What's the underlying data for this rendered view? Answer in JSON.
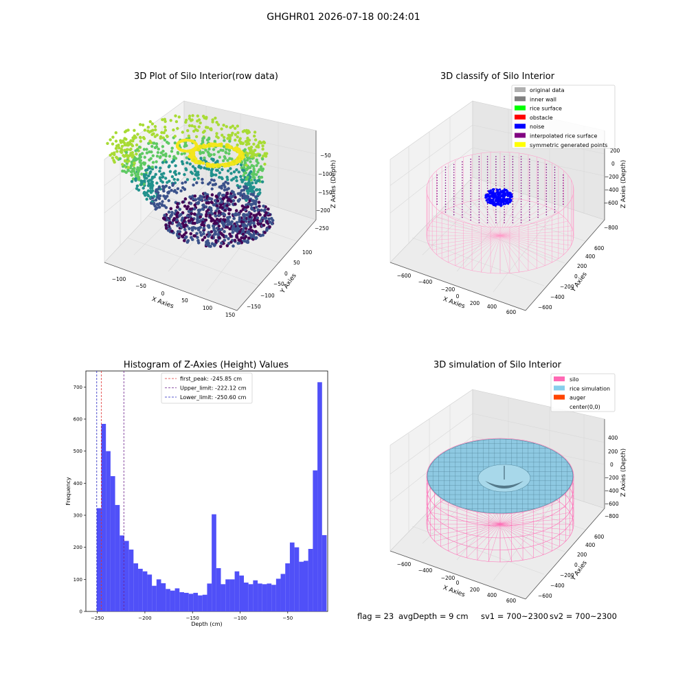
{
  "figure": {
    "title": "GHGHR01 2026-07-18 00:24:01"
  },
  "status": {
    "flag": "flag = 23",
    "avg_depth": "avgDepth = 9 cm",
    "sv1": "sv1 = 700~2300",
    "sv2": "sv2 = 700~2300"
  },
  "colors": {
    "histogram_bar": "#5050f8",
    "first_peak": "#e03030",
    "upper_limit": "#6a1d8a",
    "lower_limit": "#2020c0",
    "silo": "#ff69b4",
    "rice_simulation": "#87ceeb",
    "auger": "#ff4500",
    "noise": "#0000ff"
  },
  "chart_data": [
    {
      "type": "scatter",
      "title": "3D Plot of Silo Interior(row data)",
      "xlabel": "X Axies",
      "ylabel": "Y Axies",
      "zlabel": "Z Axies (Depth)",
      "x_ticks": [
        "−100",
        "−50",
        "0",
        "50",
        "100",
        "150"
      ],
      "y_ticks": [
        "−150",
        "−100",
        "−50",
        "0",
        "50",
        "100"
      ],
      "z_ticks": [
        "−50",
        "−100",
        "−150",
        "−200",
        "−250"
      ],
      "colormap": "viridis"
    },
    {
      "type": "scatter",
      "title": "3D classify of Silo Interior",
      "xlabel": "X Axies",
      "ylabel": "Y Axies",
      "zlabel": "Z Axies (Depth)",
      "x_ticks": [
        "−600",
        "−400",
        "−200",
        "0",
        "200",
        "400",
        "600"
      ],
      "y_ticks": [
        "−600",
        "−400",
        "−200",
        "0",
        "200",
        "400",
        "600"
      ],
      "z_ticks": [
        "200",
        "0",
        "−200",
        "−400",
        "−600",
        "−800"
      ],
      "legend_position": "top-right",
      "legend": [
        {
          "label": "original data",
          "color": "#b0b0b0"
        },
        {
          "label": "inner wall",
          "color": "#808080"
        },
        {
          "label": "rice surface",
          "color": "#00ff00"
        },
        {
          "label": "obstacle",
          "color": "#ff0000"
        },
        {
          "label": "noise",
          "color": "#0000ff"
        },
        {
          "label": "interpolated rice surface",
          "color": "#800080"
        },
        {
          "label": "symmetric generated points",
          "color": "#ffff00"
        }
      ]
    },
    {
      "type": "bar",
      "title": "Histogram of Z-Axies (Height) Values",
      "xlabel": "Depth (cm)",
      "ylabel": "Frequency",
      "xlim": [
        -262,
        -8
      ],
      "ylim": [
        0,
        750
      ],
      "x_ticks": [
        -250,
        -200,
        -150,
        -100,
        -50
      ],
      "x_tick_labels": [
        "−250",
        "−200",
        "−150",
        "−100",
        "−50"
      ],
      "y_ticks": [
        0,
        100,
        200,
        300,
        400,
        500,
        600,
        700
      ],
      "bin_start": -250.6,
      "bin_width": 4.83,
      "values": [
        322,
        585,
        500,
        422,
        332,
        237,
        220,
        193,
        150,
        133,
        125,
        115,
        80,
        100,
        88,
        70,
        65,
        72,
        60,
        58,
        55,
        58,
        50,
        52,
        87,
        303,
        135,
        85,
        100,
        100,
        125,
        112,
        90,
        85,
        97,
        87,
        85,
        87,
        83,
        102,
        117,
        150,
        215,
        200,
        155,
        158,
        195,
        440,
        715,
        238
      ],
      "legend_position": "top-center",
      "lines": [
        {
          "label": "first_peak: -245.85 cm",
          "x": -245.85,
          "color": "#e03030"
        },
        {
          "label": "Upper_limit: -222.12 cm",
          "x": -222.12,
          "color": "#6a1d8a"
        },
        {
          "label": "Lower_limit: -250.60 cm",
          "x": -250.6,
          "color": "#2020c0"
        }
      ]
    },
    {
      "type": "area",
      "title": "3D simulation of Silo Interior",
      "xlabel": "X Axies",
      "ylabel": "Y Axies",
      "zlabel": "Z Axies (Depth)",
      "x_ticks": [
        "−600",
        "−400",
        "−200",
        "0",
        "200",
        "400",
        "600"
      ],
      "y_ticks": [
        "−600",
        "−400",
        "−200",
        "0",
        "200",
        "400",
        "600"
      ],
      "z_ticks": [
        "400",
        "200",
        "0",
        "−200",
        "−400",
        "−600",
        "−800"
      ],
      "legend_position": "top-right",
      "legend": [
        {
          "label": "silo",
          "color": "#ff69b4"
        },
        {
          "label": "rice simulation",
          "color": "#87ceeb"
        },
        {
          "label": "auger",
          "color": "#ff4500"
        },
        {
          "label": "center(0,0)",
          "color": "#ffffff"
        }
      ]
    }
  ]
}
